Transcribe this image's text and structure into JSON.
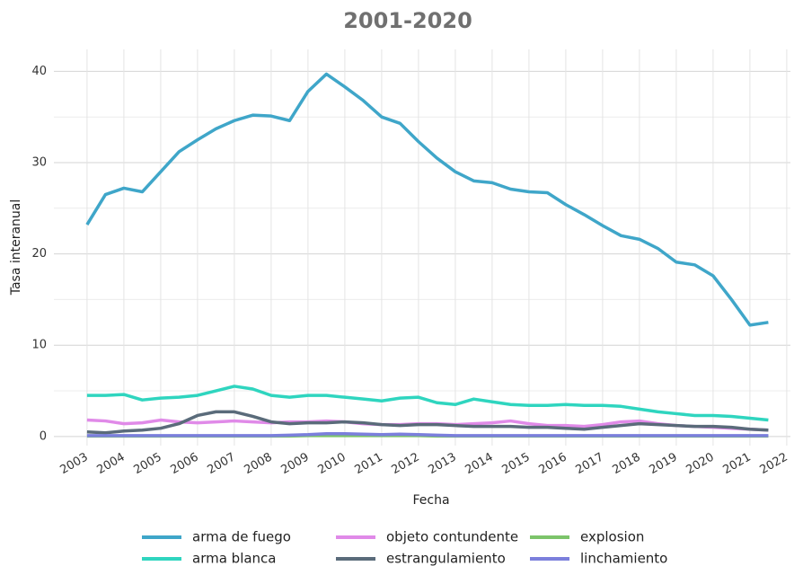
{
  "chart_data": {
    "type": "line",
    "title": "2001-2020",
    "x_label": "Fecha",
    "y_label": "Tasa interanual",
    "x": [
      2003,
      2003.5,
      2004,
      2004.5,
      2005,
      2005.5,
      2006,
      2006.5,
      2007,
      2007.5,
      2008,
      2008.5,
      2009,
      2009.5,
      2010,
      2010.5,
      2011,
      2011.5,
      2012,
      2012.5,
      2013,
      2013.5,
      2014,
      2014.5,
      2015,
      2015.5,
      2016,
      2016.5,
      2017,
      2017.5,
      2018,
      2018.5,
      2019,
      2019.5,
      2020,
      2020.5,
      2021,
      2021.5
    ],
    "series": [
      {
        "name": "arma de fuego",
        "color": "#3fa6c9",
        "values": [
          23.2,
          26.5,
          27.2,
          26.8,
          29,
          31.2,
          32.5,
          33.7,
          34.6,
          35.2,
          35.1,
          34.6,
          37.8,
          39.7,
          38.3,
          36.8,
          35,
          34.3,
          32.3,
          30.5,
          29,
          28,
          27.8,
          27.1,
          26.8,
          26.7,
          25.4,
          24.3,
          23.1,
          22,
          21.6,
          20.6,
          19.1,
          18.8,
          17.6,
          15,
          12.2,
          12.5
        ]
      },
      {
        "name": "arma blanca",
        "color": "#2fd5bf",
        "values": [
          4.5,
          4.5,
          4.6,
          4.0,
          4.2,
          4.3,
          4.5,
          5.0,
          5.5,
          5.2,
          4.5,
          4.3,
          4.5,
          4.5,
          4.3,
          4.1,
          3.9,
          4.2,
          4.3,
          3.7,
          3.5,
          4.1,
          3.8,
          3.5,
          3.4,
          3.4,
          3.5,
          3.4,
          3.4,
          3.3,
          3.0,
          2.7,
          2.5,
          2.3,
          2.3,
          2.2,
          2.0,
          1.8
        ]
      },
      {
        "name": "objeto contundente",
        "color": "#e08ae8",
        "values": [
          1.8,
          1.7,
          1.4,
          1.5,
          1.8,
          1.6,
          1.5,
          1.6,
          1.7,
          1.6,
          1.5,
          1.6,
          1.6,
          1.7,
          1.6,
          1.4,
          1.3,
          1.3,
          1.4,
          1.4,
          1.3,
          1.4,
          1.5,
          1.7,
          1.4,
          1.2,
          1.2,
          1.1,
          1.3,
          1.6,
          1.7,
          1.4,
          1.2,
          1.1,
          1.0,
          0.9,
          0.8,
          0.7
        ]
      },
      {
        "name": "estrangulamiento",
        "color": "#5a6b7a",
        "values": [
          0.5,
          0.4,
          0.6,
          0.7,
          0.9,
          1.4,
          2.3,
          2.7,
          2.7,
          2.2,
          1.6,
          1.4,
          1.5,
          1.5,
          1.6,
          1.5,
          1.3,
          1.2,
          1.3,
          1.3,
          1.2,
          1.1,
          1.1,
          1.1,
          1.0,
          1.0,
          0.9,
          0.8,
          1.0,
          1.2,
          1.4,
          1.3,
          1.2,
          1.1,
          1.1,
          1.0,
          0.8,
          0.7
        ]
      },
      {
        "name": "explosion",
        "color": "#7cc46a",
        "values": [
          0.05,
          0.05,
          0.05,
          0.05,
          0.05,
          0.05,
          0.05,
          0.05,
          0.05,
          0.05,
          0.05,
          0.05,
          0.1,
          0.1,
          0.1,
          0.1,
          0.1,
          0.1,
          0.1,
          0.05,
          0.05,
          0.05,
          0.05,
          0.05,
          0.05,
          0.05,
          0.05,
          0.05,
          0.05,
          0.05,
          0.05,
          0.05,
          0.05,
          0.05,
          0.05,
          0.05,
          0.05,
          0.05
        ]
      },
      {
        "name": "linchamiento",
        "color": "#7b7fdc",
        "values": [
          0.1,
          0.1,
          0.1,
          0.1,
          0.1,
          0.1,
          0.1,
          0.1,
          0.1,
          0.1,
          0.1,
          0.15,
          0.2,
          0.3,
          0.3,
          0.25,
          0.2,
          0.25,
          0.2,
          0.15,
          0.1,
          0.1,
          0.1,
          0.1,
          0.1,
          0.1,
          0.1,
          0.1,
          0.1,
          0.1,
          0.1,
          0.1,
          0.1,
          0.1,
          0.1,
          0.1,
          0.1,
          0.1
        ]
      }
    ],
    "xlim": [
      2002.1,
      2022.1
    ],
    "xticks": [
      2003,
      2004,
      2005,
      2006,
      2007,
      2008,
      2009,
      2010,
      2011,
      2012,
      2013,
      2014,
      2015,
      2016,
      2017,
      2018,
      2019,
      2020,
      2021,
      2022
    ],
    "ylim": [
      -1,
      42.4
    ],
    "yticks": [
      0,
      10,
      20,
      30,
      40
    ],
    "grid": true,
    "legend": "bottom"
  }
}
